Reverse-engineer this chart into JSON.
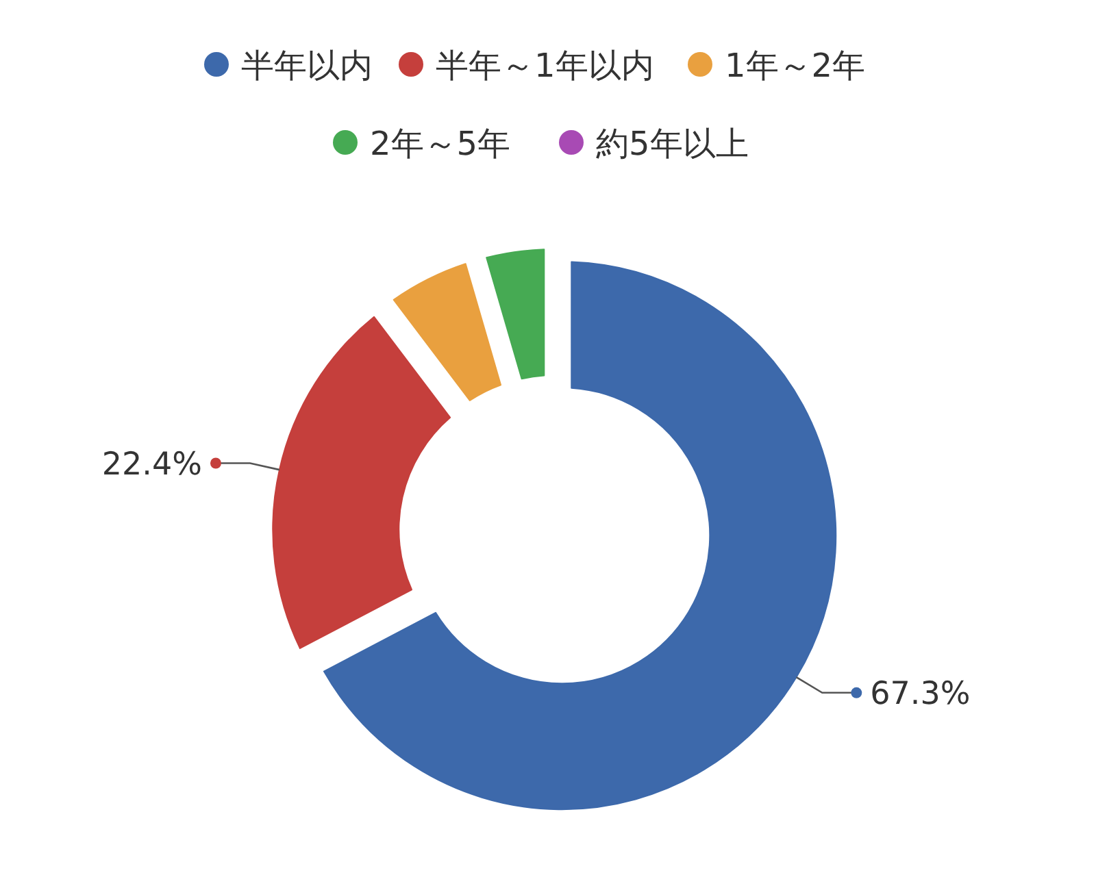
{
  "chart_data": {
    "type": "donut",
    "categories": [
      "半年以内",
      "半年～1年以内",
      "1年～2年",
      "2年～5年",
      "約5年以上"
    ],
    "values": [
      67.3,
      22.4,
      5.8,
      4.5,
      0
    ],
    "colors": [
      "#3d69ab",
      "#c53f3c",
      "#e9a03f",
      "#46aa53",
      "#a84ab4"
    ],
    "value_labels": [
      "67.3%",
      "22.4%",
      null,
      null,
      null
    ],
    "legend": "top"
  }
}
